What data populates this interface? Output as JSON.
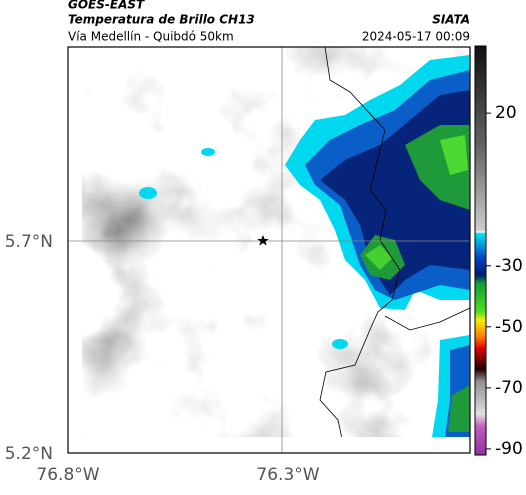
{
  "header": {
    "title": "GOES-EAST",
    "subtitle": "Temperatura de Brillo CH13",
    "route": "Vía Medellín - Quibdó 50km",
    "source": "SIATA",
    "datetime": "2024-05-17 00:09"
  },
  "axes": {
    "lat_labels": [
      "5.7°N",
      "5.2°N"
    ],
    "lon_labels": [
      "76.8°W",
      "76.3°W"
    ]
  },
  "colorbar": {
    "lim": [
      -92,
      42
    ],
    "ticks": [
      20,
      -30,
      -50,
      -70,
      -90
    ]
  }
}
